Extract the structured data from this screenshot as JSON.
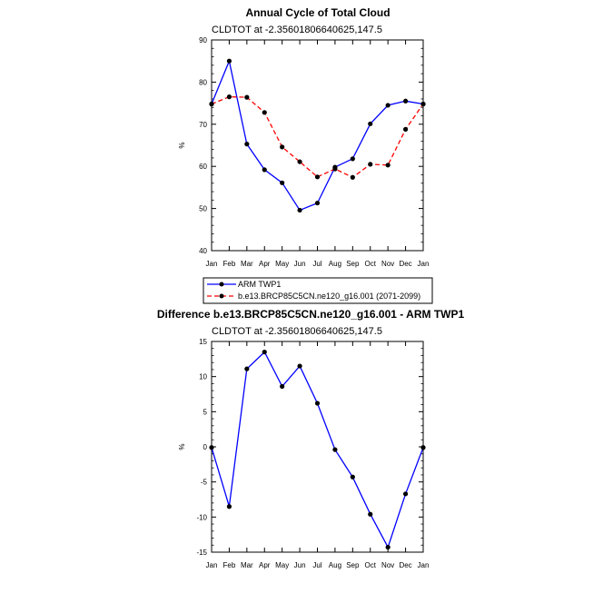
{
  "chart_data": [
    {
      "type": "line",
      "title": "Annual Cycle of Total Cloud",
      "subtitle": "CLDTOT at -2.35601806640625,147.5",
      "ylabel": "%",
      "ylim": [
        40,
        90
      ],
      "yticks": [
        40,
        50,
        60,
        70,
        80,
        90
      ],
      "categories": [
        "Jan",
        "Feb",
        "Mar",
        "Apr",
        "May",
        "Jun",
        "Jul",
        "Aug",
        "Sep",
        "Oct",
        "Nov",
        "Dec",
        "Jan"
      ],
      "series": [
        {
          "name": "ARM TWP1",
          "color": "#0000ff",
          "style": "solid",
          "values": [
            74.8,
            85.0,
            65.3,
            59.2,
            56.1,
            49.6,
            51.3,
            59.8,
            61.8,
            70.1,
            74.5,
            75.5,
            74.8
          ]
        },
        {
          "name": "b.e13.BRCP85C5CN.ne120_g16.001 (2071-2099)",
          "color": "#ff0000",
          "style": "dashed",
          "values": [
            74.8,
            76.5,
            76.4,
            72.8,
            64.6,
            61.1,
            57.5,
            59.4,
            57.4,
            60.5,
            60.3,
            68.8,
            74.8
          ]
        }
      ],
      "legend": [
        "ARM TWP1",
        "b.e13.BRCP85C5CN.ne120_g16.001 (2071-2099)"
      ]
    },
    {
      "type": "line",
      "title": "Difference b.e13.BRCP85C5CN.ne120_g16.001 - ARM TWP1",
      "subtitle": "CLDTOT at -2.35601806640625,147.5",
      "ylabel": "%",
      "ylim": [
        -15,
        15
      ],
      "yticks": [
        -15,
        -10,
        -5,
        0,
        5,
        10,
        15
      ],
      "categories": [
        "Jan",
        "Feb",
        "Mar",
        "Apr",
        "May",
        "Jun",
        "Jul",
        "Aug",
        "Sep",
        "Oct",
        "Nov",
        "Dec",
        "Jan"
      ],
      "series": [
        {
          "name": "Difference",
          "color": "#0000ff",
          "style": "solid",
          "values": [
            -0.1,
            -8.5,
            11.1,
            13.5,
            8.6,
            11.5,
            6.2,
            -0.4,
            -4.3,
            -9.6,
            -14.3,
            -6.7,
            -0.1
          ]
        }
      ]
    }
  ]
}
